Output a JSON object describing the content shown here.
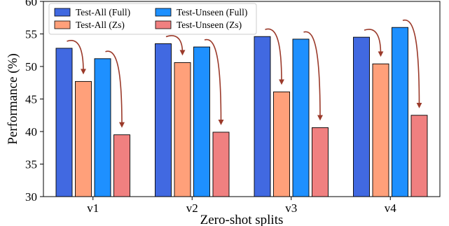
{
  "chart_data": {
    "type": "bar",
    "title": "",
    "xlabel": "Zero-shot splits",
    "ylabel": "Performance (%)",
    "ylim": [
      30,
      60
    ],
    "yticks": [
      30,
      35,
      40,
      45,
      50,
      55,
      60
    ],
    "grid": false,
    "legend_position": "top-left",
    "categories": [
      "v1",
      "v2",
      "v3",
      "v4"
    ],
    "series": [
      {
        "name": "Test-All (Full)",
        "color": "#4169e1",
        "values": [
          52.8,
          53.5,
          54.6,
          54.5
        ]
      },
      {
        "name": "Test-All (Zs)",
        "color": "#ffa07a",
        "values": [
          47.7,
          50.6,
          46.1,
          50.4
        ]
      },
      {
        "name": "Test-Unseen (Full)",
        "color": "#1e90ff",
        "values": [
          51.2,
          53.0,
          54.2,
          56.0
        ]
      },
      {
        "name": "Test-Unseen (Zs)",
        "color": "#f08080",
        "values": [
          39.5,
          39.9,
          40.6,
          42.5
        ]
      }
    ],
    "annotations": {
      "type": "curved-arrow",
      "color": "#9b3a2a",
      "description_pairs": [
        [
          "Test-All (Full)",
          "Test-All (Zs)"
        ],
        [
          "Test-Unseen (Full)",
          "Test-Unseen (Zs)"
        ]
      ]
    }
  }
}
